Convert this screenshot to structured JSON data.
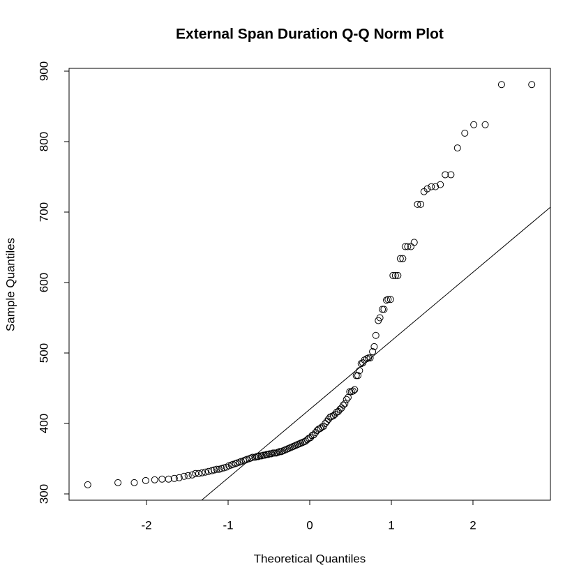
{
  "chart_data": {
    "type": "scatter",
    "title": "External Span Duration Q-Q Norm Plot",
    "x_label": "Theoretical Quantiles",
    "y_label": "Sample Quantiles",
    "x": [
      -2.72,
      -2.35,
      -2.15,
      -2.01,
      -1.9,
      -1.81,
      -1.73,
      -1.66,
      -1.6,
      -1.54,
      -1.49,
      -1.44,
      -1.4,
      -1.36,
      -1.32,
      -1.28,
      -1.24,
      -1.2,
      -1.17,
      -1.14,
      -1.11,
      -1.08,
      -1.05,
      -1.02,
      -0.99,
      -0.96,
      -0.94,
      -0.91,
      -0.89,
      -0.86,
      -0.84,
      -0.81,
      -0.79,
      -0.77,
      -0.74,
      -0.72,
      -0.7,
      -0.67,
      -0.65,
      -0.63,
      -0.61,
      -0.59,
      -0.57,
      -0.55,
      -0.53,
      -0.51,
      -0.49,
      -0.47,
      -0.45,
      -0.43,
      -0.41,
      -0.39,
      -0.37,
      -0.35,
      -0.33,
      -0.31,
      -0.29,
      -0.27,
      -0.25,
      -0.23,
      -0.21,
      -0.19,
      -0.17,
      -0.15,
      -0.13,
      -0.11,
      -0.09,
      -0.07,
      -0.05,
      -0.03,
      -0.01,
      0.01,
      0.03,
      0.05,
      0.07,
      0.09,
      0.11,
      0.13,
      0.15,
      0.17,
      0.19,
      0.21,
      0.23,
      0.25,
      0.27,
      0.29,
      0.31,
      0.33,
      0.35,
      0.37,
      0.39,
      0.41,
      0.43,
      0.45,
      0.47,
      0.49,
      0.51,
      0.53,
      0.55,
      0.57,
      0.59,
      0.61,
      0.63,
      0.65,
      0.67,
      0.7,
      0.72,
      0.74,
      0.77,
      0.79,
      0.81,
      0.84,
      0.86,
      0.89,
      0.91,
      0.94,
      0.96,
      0.99,
      1.02,
      1.05,
      1.08,
      1.11,
      1.14,
      1.17,
      1.2,
      1.24,
      1.28,
      1.32,
      1.36,
      1.4,
      1.44,
      1.49,
      1.54,
      1.6,
      1.66,
      1.73,
      1.81,
      1.9,
      2.01,
      2.15,
      2.35,
      2.72
    ],
    "values": [
      313,
      316,
      316,
      319,
      320,
      321,
      321,
      322,
      323,
      325,
      326,
      327,
      329,
      329,
      330,
      331,
      332,
      333,
      334,
      335,
      335,
      336,
      337,
      338,
      340,
      341,
      342,
      343,
      344,
      345,
      346,
      347,
      348,
      349,
      350,
      351,
      352,
      352,
      353,
      353,
      354,
      354,
      355,
      355,
      356,
      356,
      357,
      357,
      358,
      358,
      358,
      359,
      360,
      360,
      361,
      362,
      363,
      364,
      365,
      366,
      367,
      368,
      369,
      370,
      371,
      372,
      373,
      374,
      375,
      377,
      379,
      380,
      383,
      384,
      387,
      390,
      392,
      393,
      395,
      396,
      400,
      403,
      406,
      409,
      410,
      411,
      413,
      416,
      417,
      420,
      422,
      426,
      428,
      434,
      437,
      445,
      445,
      446,
      448,
      468,
      468,
      475,
      485,
      486,
      490,
      492,
      493,
      493,
      502,
      509,
      525,
      546,
      550,
      562,
      562,
      575,
      576,
      576,
      610,
      610,
      610,
      634,
      634,
      651,
      651,
      651,
      657,
      711,
      711,
      729,
      733,
      736,
      736,
      739,
      753,
      753,
      791,
      812,
      824,
      824,
      881,
      881
    ],
    "qqline": {
      "intercept": 420,
      "slope": 97.3
    },
    "xlim": [
      -2.949,
      2.949
    ],
    "ylim": [
      291.1,
      903.96
    ],
    "xticks": [
      -2,
      -1,
      0,
      1,
      2
    ],
    "yticks": [
      300,
      400,
      500,
      600,
      700,
      800,
      900
    ],
    "color": "#000000"
  }
}
